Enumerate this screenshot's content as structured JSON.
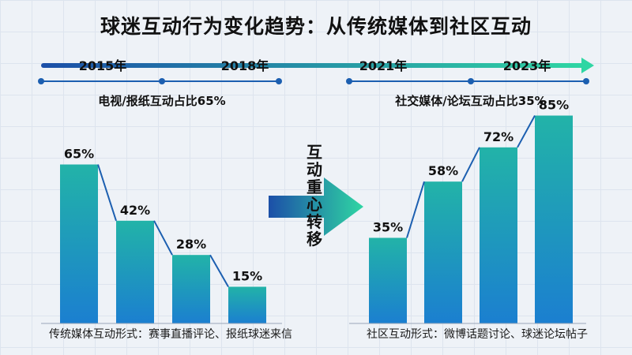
{
  "title": "球迷互动行为变化趋势：从传统媒体到社区互动",
  "timeline": {
    "years": [
      "2015年",
      "2018年",
      "2021年",
      "2023年"
    ]
  },
  "center_arrow_text": [
    "互",
    "动",
    "重",
    "心",
    "转",
    "移"
  ],
  "colors": {
    "bar_top": "#22b3a8",
    "bar_bottom": "#1b7fd0",
    "line": "#1c5fb0",
    "arrow_start": "#1c4fa8",
    "arrow_end": "#2fd6a3"
  },
  "chart_data": [
    {
      "type": "bar",
      "title": "电视/报纸互动占比65%",
      "caption": "传统媒体互动形式：赛事直播评论、报纸球迷来信",
      "values": [
        65,
        42,
        28,
        15
      ],
      "value_labels": [
        "65%",
        "42%",
        "28%",
        "15%"
      ],
      "ylim": [
        0,
        90
      ]
    },
    {
      "type": "bar",
      "title": "社交媒体/论坛互动占比35%",
      "caption": "社区互动形式：微博话题讨论、球迷论坛帖子",
      "values": [
        35,
        58,
        72,
        85
      ],
      "value_labels": [
        "35%",
        "58%",
        "72%",
        "85%"
      ],
      "ylim": [
        0,
        90
      ]
    }
  ]
}
